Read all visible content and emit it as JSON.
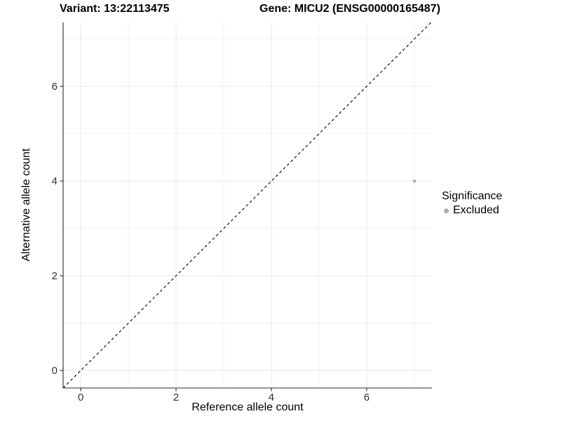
{
  "chart_data": {
    "type": "scatter",
    "titles": {
      "variant": "Variant: 13:22113475",
      "gene": "Gene: MICU2 (ENSG00000165487)"
    },
    "xlabel": "Reference allele count",
    "ylabel": "Alternative allele count",
    "xlim": [
      -0.37,
      7.37
    ],
    "ylim": [
      -0.37,
      7.35
    ],
    "xticks": [
      0,
      2,
      4,
      6
    ],
    "yticks": [
      0,
      2,
      4,
      6
    ],
    "xticks_minor": [
      1,
      3,
      5,
      7
    ],
    "yticks_minor": [
      1,
      3,
      5,
      7
    ],
    "grid": "on",
    "reference_line": {
      "kind": "abline",
      "slope": 1,
      "intercept": 0,
      "linestyle": "dashed",
      "color": "#000000"
    },
    "series": [
      {
        "name": "Excluded",
        "color": "#b0b0b0",
        "marker_radius": 2.3,
        "points": [
          [
            7,
            4
          ]
        ]
      }
    ],
    "legend": {
      "title": "Significance",
      "position": "right",
      "entries": [
        {
          "label": "Excluded",
          "color": "#b0b0b0"
        }
      ]
    },
    "colors": {
      "background": "#ffffff",
      "grid_major": "#e7e7e7",
      "grid_minor": "#efefef",
      "axis_line": "#2a2a2a",
      "tick_label": "#303030"
    }
  }
}
